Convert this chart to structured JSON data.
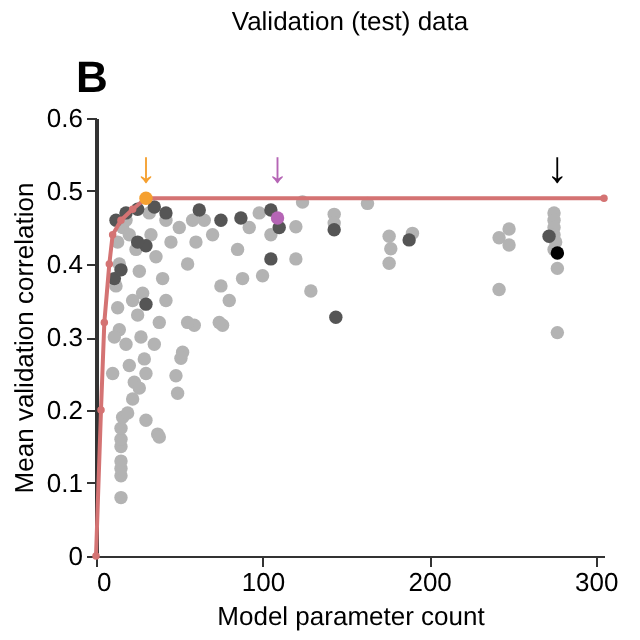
{
  "chart_data": {
    "type": "scatter",
    "title": "Validation (test) data",
    "xlabel": "Model parameter count",
    "ylabel": "Mean validation correlation",
    "xlim": [
      0,
      305
    ],
    "xticks": [
      0,
      100,
      200,
      300
    ],
    "ylim": [
      0,
      0.6
    ],
    "yticks": [
      {
        "value": 0,
        "label": "0"
      },
      0.1,
      0.2,
      0.3,
      0.4,
      0.5,
      0.6
    ],
    "grid": false,
    "annotations": [
      "B",
      "↓",
      "↓",
      "↓"
    ],
    "series": [
      {
        "color": "#b3b3b3",
        "x": [
          15,
          15,
          15,
          15,
          15,
          15,
          15,
          16,
          19,
          22,
          23,
          20,
          18,
          14,
          13,
          12,
          14,
          13,
          16,
          20,
          24,
          26,
          28,
          25,
          27,
          29,
          30,
          26,
          30,
          37,
          38,
          48,
          49,
          52,
          51,
          59,
          76,
          33,
          36,
          40,
          42,
          38,
          45,
          50,
          55,
          60,
          65,
          70,
          75,
          80,
          85,
          88,
          100,
          92,
          98,
          105,
          120,
          120,
          124,
          129,
          143,
          143,
          163,
          176,
          177,
          176,
          190,
          242,
          248,
          248,
          242,
          275,
          275,
          275,
          275,
          276,
          275,
          277,
          277,
          55,
          74,
          32,
          42,
          58,
          18,
          22,
          35,
          10,
          11
        ],
        "values": [
          0.08,
          0.11,
          0.12,
          0.13,
          0.15,
          0.16,
          0.175,
          0.19,
          0.196,
          0.215,
          0.238,
          0.261,
          0.29,
          0.31,
          0.34,
          0.37,
          0.4,
          0.43,
          0.45,
          0.44,
          0.42,
          0.39,
          0.36,
          0.33,
          0.3,
          0.27,
          0.25,
          0.23,
          0.186,
          0.167,
          0.163,
          0.247,
          0.223,
          0.279,
          0.271,
          0.316,
          0.316,
          0.44,
          0.41,
          0.38,
          0.35,
          0.32,
          0.43,
          0.45,
          0.4,
          0.43,
          0.46,
          0.44,
          0.37,
          0.35,
          0.42,
          0.38,
          0.384,
          0.45,
          0.47,
          0.44,
          0.451,
          0.407,
          0.485,
          0.363,
          0.468,
          0.456,
          0.483,
          0.438,
          0.421,
          0.401,
          0.442,
          0.436,
          0.448,
          0.426,
          0.365,
          0.47,
          0.46,
          0.45,
          0.44,
          0.43,
          0.42,
          0.394,
          0.306,
          0.32,
          0.32,
          0.47,
          0.46,
          0.46,
          0.46,
          0.35,
          0.29,
          0.25,
          0.3
        ]
      },
      {
        "type": "scatter",
        "color": "#555555",
        "x": [
          11,
          15,
          30,
          30,
          25,
          12,
          18,
          25,
          35,
          42,
          62,
          87,
          105,
          110,
          105,
          143,
          188,
          272,
          144,
          75
        ],
        "values": [
          0.38,
          0.392,
          0.345,
          0.425,
          0.43,
          0.46,
          0.47,
          0.475,
          0.478,
          0.47,
          0.474,
          0.463,
          0.474,
          0.45,
          0.407,
          0.447,
          0.433,
          0.438,
          0.327,
          0.46
        ]
      },
      {
        "type": "line",
        "color": "#d47373",
        "marker": "circle",
        "line_style": "solid",
        "x": [
          0,
          3,
          5,
          8,
          10,
          15,
          22,
          30,
          305
        ],
        "values": [
          0,
          0.2,
          0.32,
          0.4,
          0.44,
          0.46,
          0.475,
          0.49,
          0.49
        ]
      },
      {
        "type": "scatter",
        "color": "#f5a030",
        "x": [
          30
        ],
        "values": [
          0.49
        ]
      },
      {
        "type": "scatter",
        "color": "#b565b5",
        "x": [
          109
        ],
        "values": [
          0.463
        ]
      },
      {
        "type": "scatter",
        "color": "#000000",
        "x": [
          277
        ],
        "values": [
          0.415
        ]
      }
    ]
  }
}
